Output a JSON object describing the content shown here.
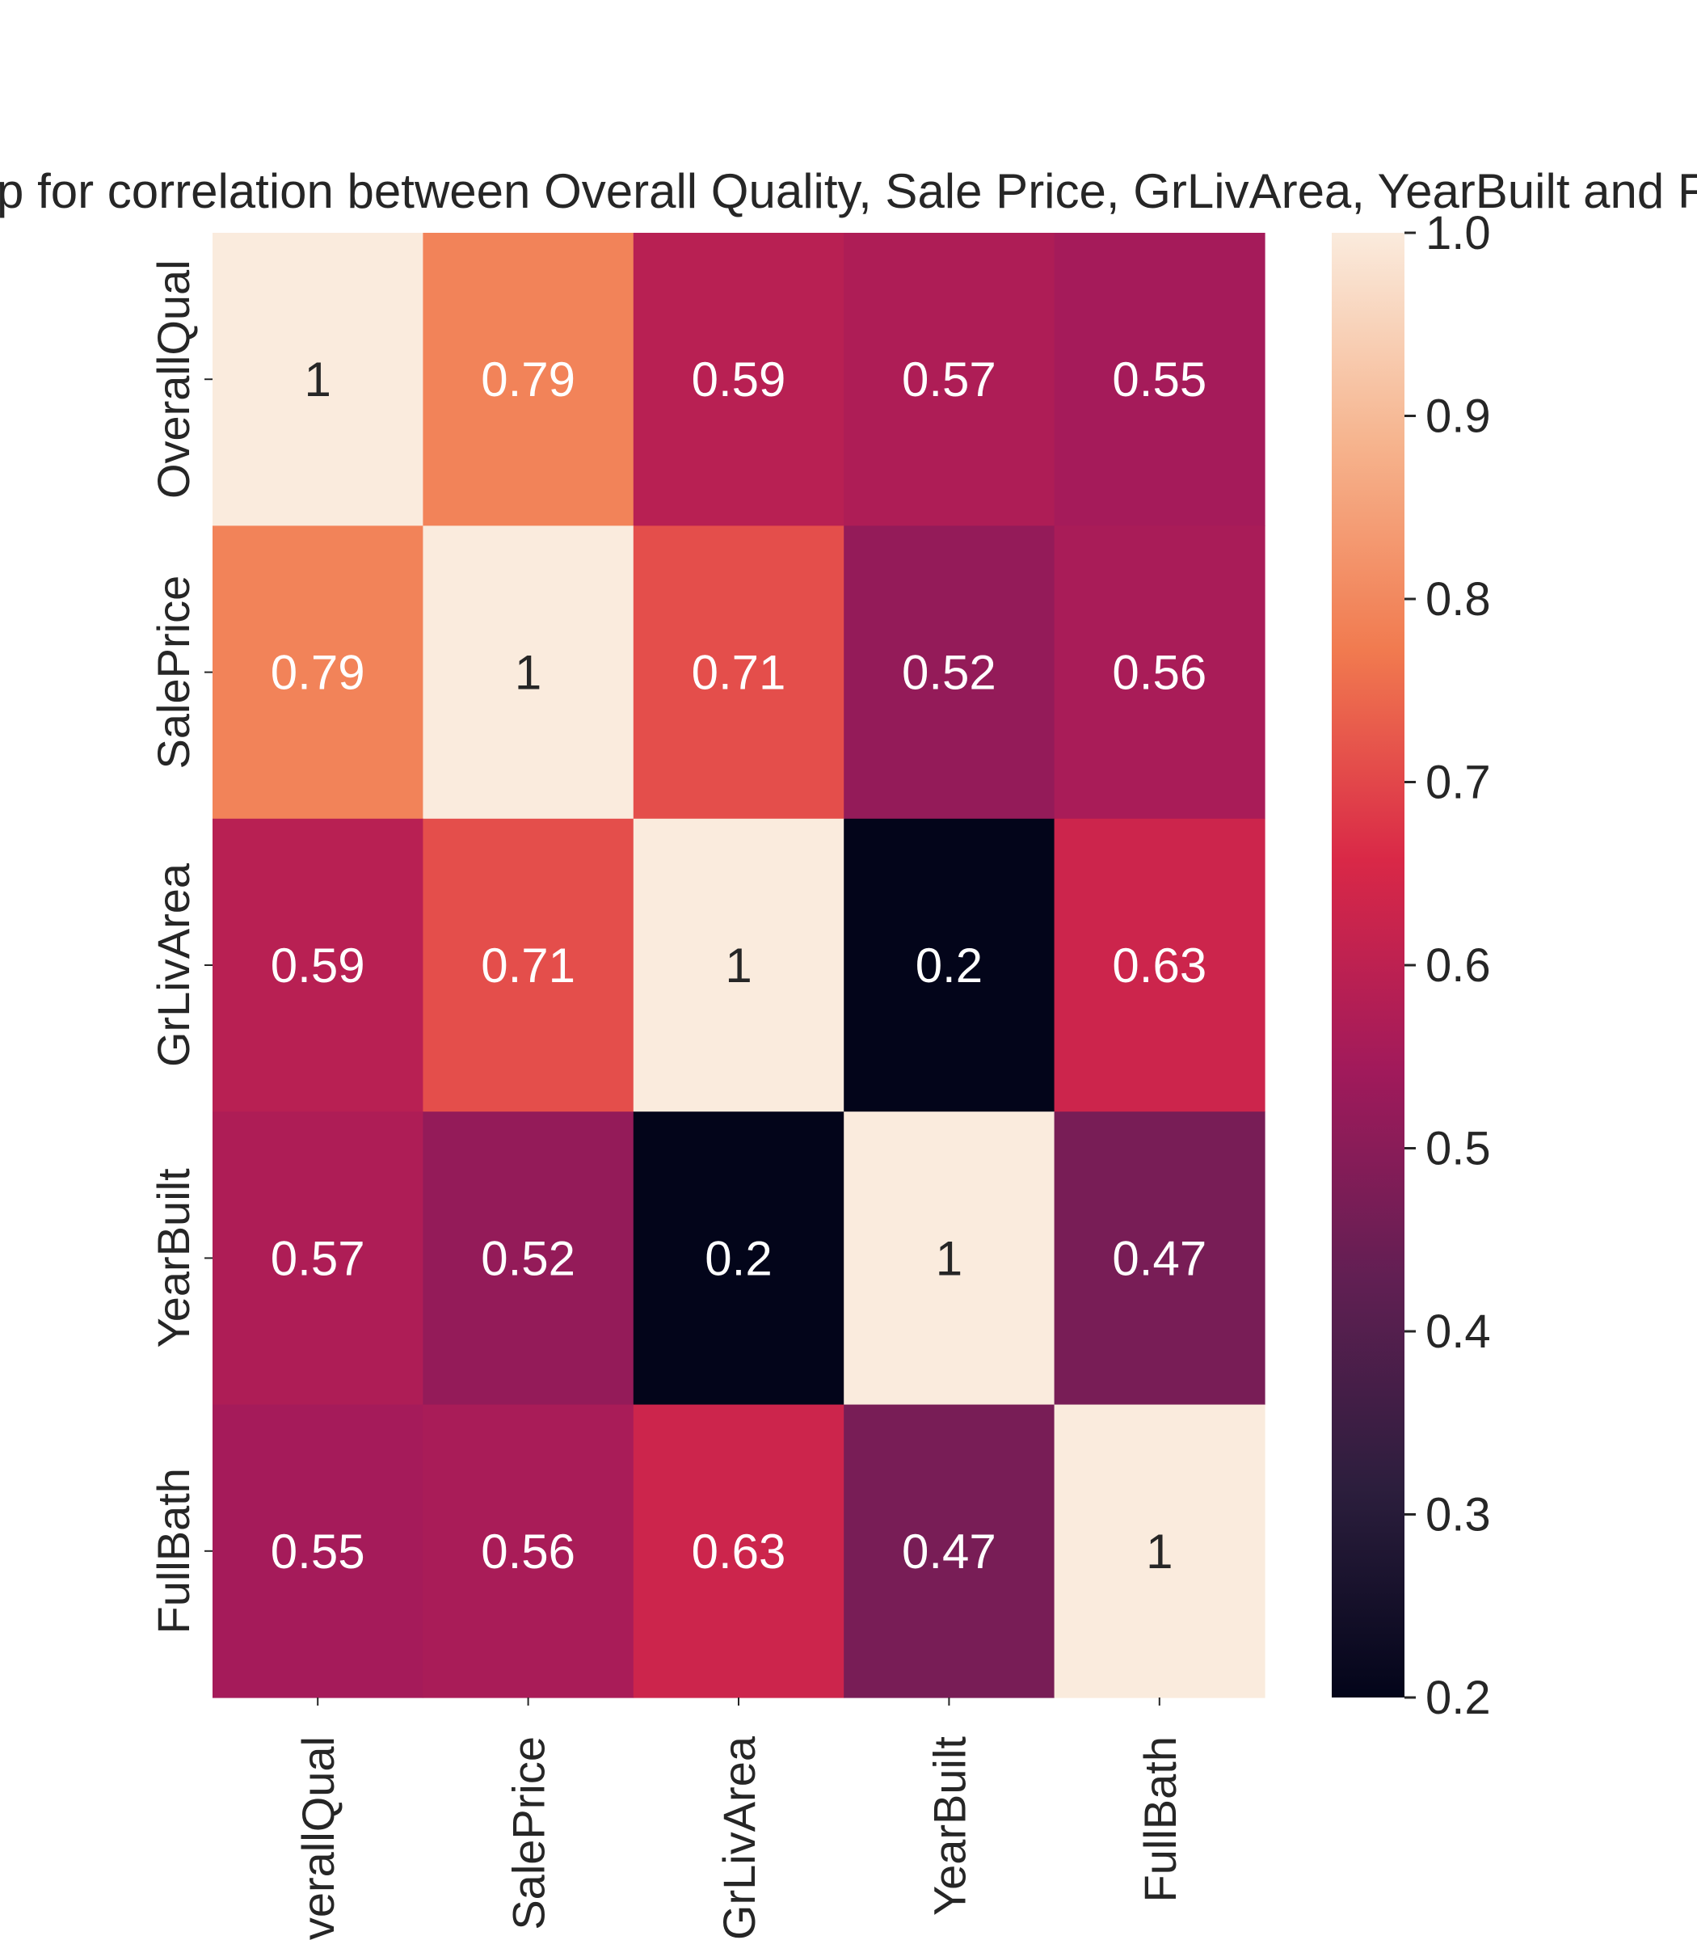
{
  "chart_data": {
    "type": "heatmap",
    "title": "Heatmap for correlation between Overall Quality, Sale Price, GrLivArea, YearBuilt and FullBath",
    "row_labels": [
      "OverallQual",
      "SalePrice",
      "GrLivArea",
      "YearBuilt",
      "FullBath"
    ],
    "col_labels": [
      "OverallQual",
      "SalePrice",
      "GrLivArea",
      "YearBuilt",
      "FullBath"
    ],
    "values": [
      [
        1,
        0.79,
        0.59,
        0.57,
        0.55
      ],
      [
        0.79,
        1,
        0.71,
        0.52,
        0.56
      ],
      [
        0.59,
        0.71,
        1,
        0.2,
        0.63
      ],
      [
        0.57,
        0.52,
        0.2,
        1,
        0.47
      ],
      [
        0.55,
        0.56,
        0.63,
        0.47,
        1
      ]
    ],
    "annotations": [
      [
        "1",
        "0.79",
        "0.59",
        "0.57",
        "0.55"
      ],
      [
        "0.79",
        "1",
        "0.71",
        "0.52",
        "0.56"
      ],
      [
        "0.59",
        "0.71",
        "1",
        "0.2",
        "0.63"
      ],
      [
        "0.57",
        "0.52",
        "0.2",
        "1",
        "0.47"
      ],
      [
        "0.55",
        "0.56",
        "0.63",
        "0.47",
        "1"
      ]
    ],
    "colorbar": {
      "vmin": 0.2,
      "vmax": 1.0,
      "ticks": [
        1.0,
        0.9,
        0.8,
        0.7,
        0.6,
        0.5,
        0.4,
        0.3,
        0.2
      ],
      "tick_labels": [
        "1.0",
        "0.9",
        "0.8",
        "0.7",
        "0.6",
        "0.5",
        "0.4",
        "0.3",
        "0.2"
      ],
      "colormap": "rocket",
      "color_stops": [
        "#03051a",
        "#2c1e3d",
        "#611f53",
        "#a11a5b",
        "#d92847",
        "#f17a4f",
        "#f6b48e",
        "#faebdd"
      ]
    },
    "annotation_colors": {
      "on_dark": "#ffffff",
      "on_light": "#262626"
    }
  }
}
